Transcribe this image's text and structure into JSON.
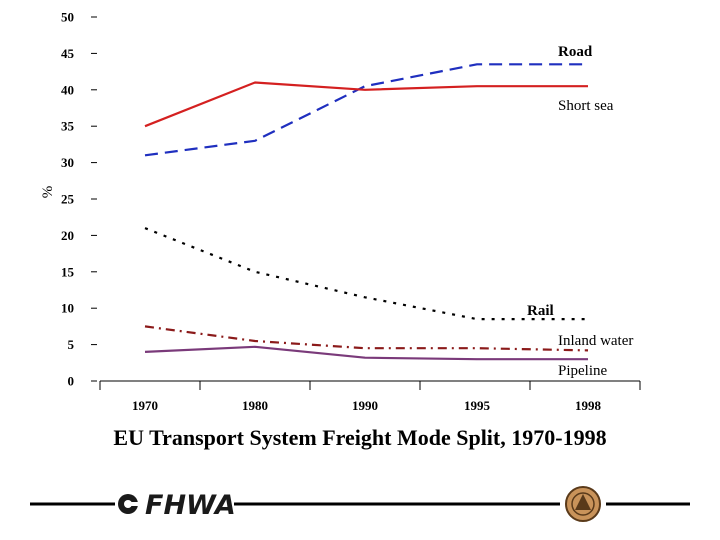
{
  "chart_data": {
    "type": "line",
    "title": "EU Transport System Freight Mode Split, 1970-1998",
    "xlabel": "",
    "ylabel": "%",
    "categories": [
      "1970",
      "1980",
      "1990",
      "1995",
      "1998"
    ],
    "yticks": [
      "0",
      "5",
      "10",
      "15",
      "20",
      "25",
      "30",
      "35",
      "40",
      "45",
      "50"
    ],
    "ylim": [
      0,
      50
    ],
    "grid": false,
    "series": [
      {
        "name": "Road",
        "values": [
          31,
          33,
          40.5,
          43.5,
          43.5
        ],
        "color": "#1f2fbf",
        "dash": "long-dash"
      },
      {
        "name": "Short sea",
        "values": [
          35,
          41,
          40,
          40.5,
          40.5
        ],
        "color": "#d42020",
        "dash": "solid"
      },
      {
        "name": "Rail",
        "values": [
          21,
          15,
          11.5,
          8.5,
          8.5
        ],
        "color": "#000000",
        "dash": "dotted"
      },
      {
        "name": "Inland water",
        "values": [
          7.5,
          5.5,
          4.5,
          4.5,
          4.2
        ],
        "color": "#8b1a1a",
        "dash": "dash-dot"
      },
      {
        "name": "Pipeline",
        "values": [
          4,
          4.7,
          3.2,
          3,
          3
        ],
        "color": "#7a3a7a",
        "dash": "solid"
      }
    ]
  },
  "footer": {
    "logo_text": "FHWA",
    "colors": {
      "rule": "#000000",
      "logo": "#1a1a1a",
      "seal": "#8b5a2b"
    }
  }
}
